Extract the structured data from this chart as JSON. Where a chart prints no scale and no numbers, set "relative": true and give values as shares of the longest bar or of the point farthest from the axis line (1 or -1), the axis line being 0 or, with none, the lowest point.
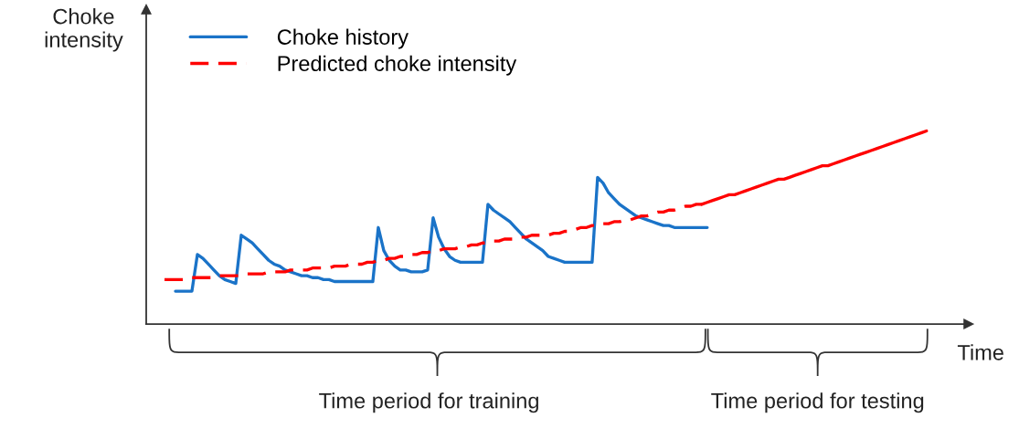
{
  "chart_data": {
    "type": "line",
    "relative": true,
    "xlabel": "Time",
    "ylabel": "Choke intensity",
    "legend": "top left",
    "marker": "none",
    "categories": [
      null,
      null,
      null,
      null,
      null,
      null,
      null,
      null,
      null,
      null,
      null,
      null,
      null,
      null,
      null,
      null,
      null,
      null,
      null,
      null,
      null,
      null,
      null,
      null,
      null,
      null,
      null,
      null,
      null,
      null,
      null,
      null,
      null,
      null,
      null,
      null,
      null,
      null,
      null,
      null,
      null,
      null,
      null,
      null,
      null,
      null,
      null,
      null,
      null,
      null,
      null,
      null,
      null,
      null,
      null,
      null,
      null,
      null,
      null,
      null,
      null,
      null,
      null,
      null,
      null,
      null,
      null,
      null,
      null,
      null,
      null,
      null,
      null,
      null,
      null,
      null,
      null,
      null,
      null,
      null,
      null,
      null,
      null,
      null,
      null,
      null,
      null,
      null,
      null,
      null,
      null,
      null,
      null,
      null,
      null,
      null,
      null,
      null,
      null,
      null,
      null,
      null,
      null,
      null,
      null,
      null,
      null,
      null,
      null,
      null,
      null,
      null,
      null,
      null,
      null,
      null,
      null,
      null,
      null,
      null,
      null,
      null,
      null,
      null,
      null,
      null,
      null,
      null,
      null,
      null,
      null,
      null,
      null,
      null,
      null,
      null,
      null,
      null,
      null,
      null
    ],
    "series": [
      {
        "name": "Choke history",
        "color": "#1a73c8",
        "line_style": "solid",
        "values": [
          null,
          null,
          0.17,
          0.17,
          0.17,
          0.17,
          0.36,
          0.34,
          0.31,
          0.28,
          0.25,
          0.23,
          0.22,
          0.21,
          0.46,
          0.44,
          0.42,
          0.39,
          0.36,
          0.33,
          0.31,
          0.3,
          0.28,
          0.27,
          0.26,
          0.25,
          0.25,
          0.24,
          0.24,
          0.23,
          0.23,
          0.22,
          0.22,
          0.22,
          0.22,
          0.22,
          0.22,
          0.22,
          0.22,
          0.5,
          0.38,
          0.33,
          0.3,
          0.28,
          0.28,
          0.27,
          0.27,
          0.27,
          0.28,
          0.55,
          0.45,
          0.39,
          0.35,
          0.33,
          0.32,
          0.32,
          0.32,
          0.32,
          0.32,
          0.62,
          0.59,
          0.57,
          0.55,
          0.53,
          0.5,
          0.47,
          0.44,
          0.42,
          0.4,
          0.38,
          0.35,
          0.34,
          0.33,
          0.32,
          0.32,
          0.32,
          0.32,
          0.32,
          0.32,
          0.76,
          0.73,
          0.68,
          0.65,
          0.62,
          0.6,
          0.58,
          0.56,
          0.55,
          0.54,
          0.53,
          0.52,
          0.51,
          0.51,
          0.5,
          0.5,
          0.5,
          0.5,
          0.5,
          0.5,
          0.5,
          null,
          null,
          null,
          null,
          null,
          null,
          null,
          null,
          null,
          null,
          null,
          null,
          null,
          null,
          null,
          null,
          null,
          null,
          null,
          null,
          null,
          null,
          null,
          null,
          null,
          null,
          null,
          null,
          null,
          null,
          null,
          null,
          null,
          null,
          null,
          null,
          null,
          null,
          null,
          null
        ]
      },
      {
        "name": "Predicted choke intensity",
        "color": "#ff0000",
        "line_style": "dashed",
        "values": [
          0.23,
          0.23,
          0.23,
          0.23,
          0.23,
          0.24,
          0.24,
          0.24,
          0.24,
          0.24,
          0.25,
          0.25,
          0.25,
          0.25,
          0.25,
          0.26,
          0.26,
          0.26,
          0.26,
          0.27,
          0.27,
          0.27,
          0.27,
          0.28,
          0.28,
          0.28,
          0.28,
          0.29,
          0.29,
          0.29,
          0.29,
          0.3,
          0.3,
          0.3,
          0.31,
          0.31,
          0.31,
          0.32,
          0.32,
          0.33,
          0.33,
          0.34,
          0.34,
          0.35,
          0.35,
          0.36,
          0.36,
          0.37,
          0.37,
          0.38,
          0.38,
          0.39,
          0.39,
          0.39,
          0.4,
          0.4,
          0.41,
          0.41,
          0.42,
          0.42,
          0.43,
          0.43,
          0.44,
          0.44,
          0.44,
          0.45,
          0.45,
          0.46,
          0.46,
          0.46,
          0.46,
          0.47,
          0.47,
          0.48,
          0.48,
          0.49,
          0.5,
          0.5,
          0.51,
          0.51,
          0.52,
          0.52,
          0.53,
          0.53,
          0.54,
          0.54,
          0.55,
          0.56,
          0.56,
          0.57,
          0.58,
          0.58,
          0.59,
          0.59,
          0.6,
          0.61,
          0.61,
          0.62,
          0.62,
          null,
          null,
          null,
          null,
          null,
          null,
          null,
          null,
          null,
          null,
          null,
          null,
          null,
          null,
          null,
          null,
          null,
          null,
          null,
          null,
          null,
          null,
          null,
          null,
          null,
          null,
          null,
          null,
          null,
          null,
          null,
          null,
          null,
          null,
          null,
          null,
          null,
          null,
          null,
          null,
          null
        ]
      },
      {
        "color": "#ff0000",
        "line_style": "solid",
        "values": [
          null,
          null,
          null,
          null,
          null,
          null,
          null,
          null,
          null,
          null,
          null,
          null,
          null,
          null,
          null,
          null,
          null,
          null,
          null,
          null,
          null,
          null,
          null,
          null,
          null,
          null,
          null,
          null,
          null,
          null,
          null,
          null,
          null,
          null,
          null,
          null,
          null,
          null,
          null,
          null,
          null,
          null,
          null,
          null,
          null,
          null,
          null,
          null,
          null,
          null,
          null,
          null,
          null,
          null,
          null,
          null,
          null,
          null,
          null,
          null,
          null,
          null,
          null,
          null,
          null,
          null,
          null,
          null,
          null,
          null,
          null,
          null,
          null,
          null,
          null,
          null,
          null,
          null,
          null,
          null,
          null,
          null,
          null,
          null,
          null,
          null,
          null,
          null,
          null,
          null,
          null,
          null,
          null,
          null,
          null,
          null,
          null,
          null,
          0.62,
          0.63,
          0.64,
          0.65,
          0.66,
          0.67,
          0.67,
          0.68,
          0.69,
          0.7,
          0.71,
          0.72,
          0.73,
          0.74,
          0.75,
          0.75,
          0.76,
          0.77,
          0.78,
          0.79,
          0.8,
          0.81,
          0.82,
          0.82,
          0.83,
          0.84,
          0.85,
          0.86,
          0.87,
          0.88,
          0.89,
          0.9,
          0.91,
          0.92,
          0.93,
          0.94,
          0.95,
          0.96,
          0.97,
          0.98,
          0.99,
          1.0
        ]
      }
    ],
    "annotations": [
      "Time period for training",
      "Time period for testing"
    ]
  }
}
